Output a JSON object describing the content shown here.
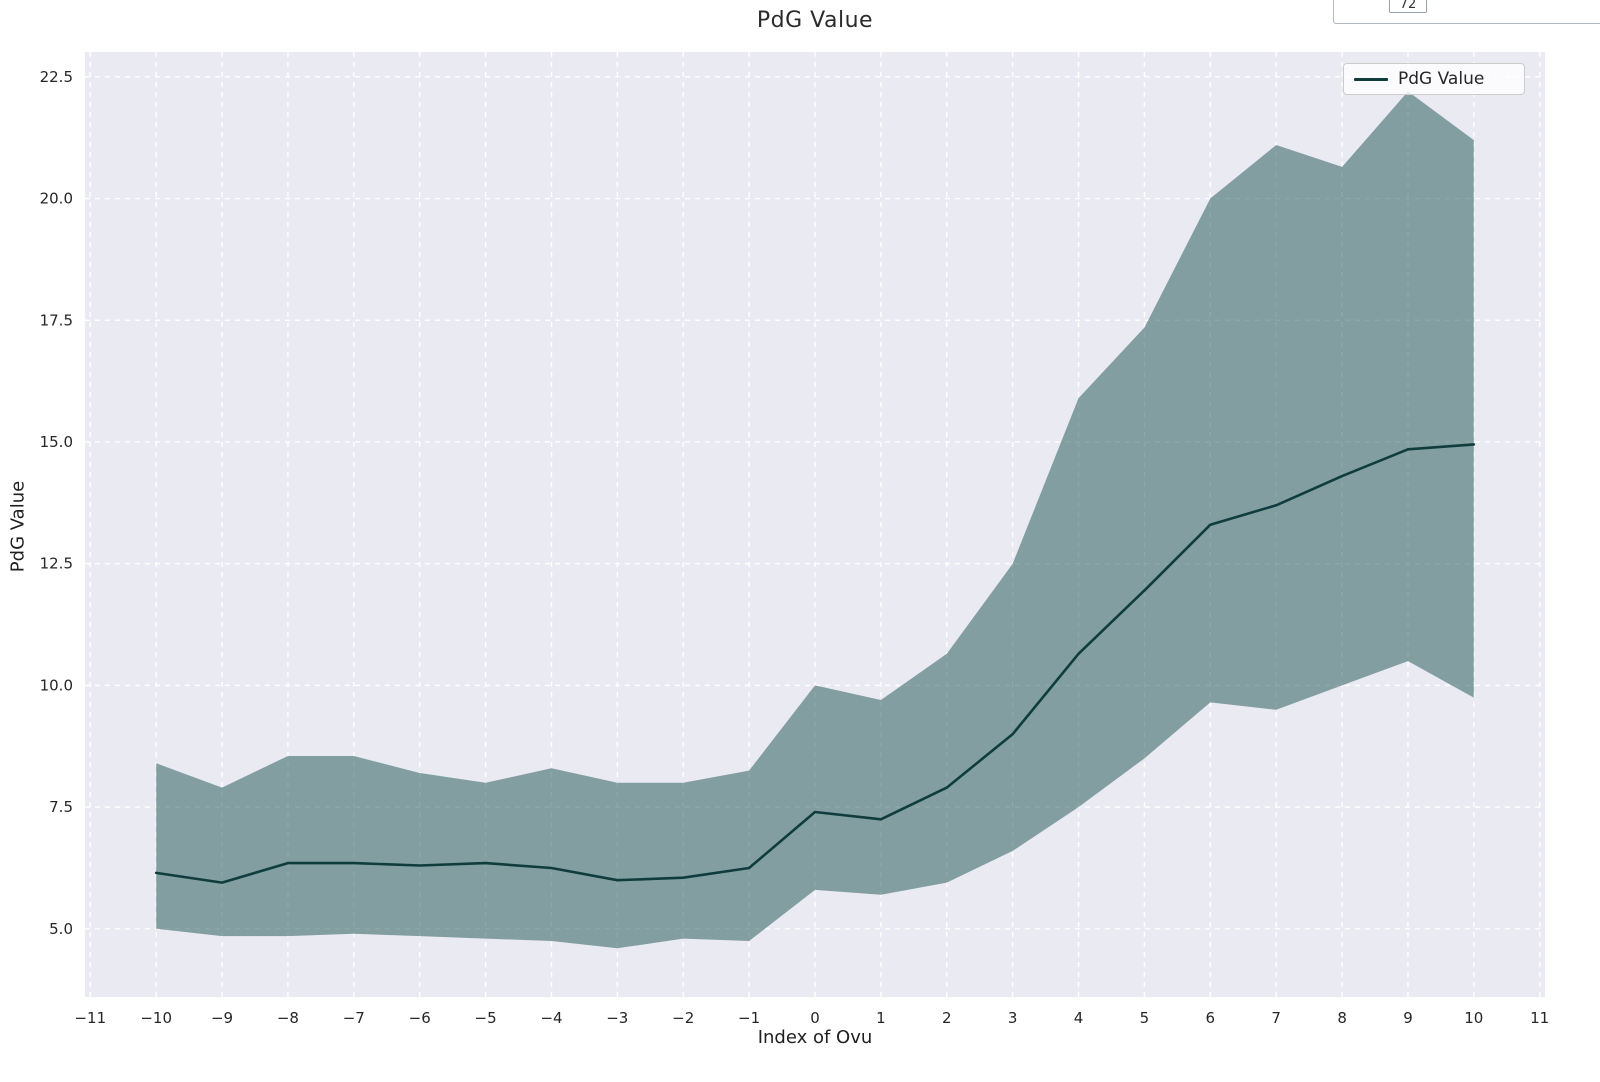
{
  "page": {
    "background": "#ffffff"
  },
  "partial_widget": {
    "text": "72"
  },
  "chart_data": {
    "type": "line",
    "title": "PdG Value",
    "xlabel": "Index of Ovu",
    "ylabel": "PdG Value",
    "legend": {
      "label": "PdG Value",
      "position": "upper right"
    },
    "grid": "on, white dashed (seaborn darkgrid style)",
    "x": [
      -10,
      -9,
      -8,
      -7,
      -6,
      -5,
      -4,
      -3,
      -2,
      -1,
      0,
      1,
      2,
      3,
      4,
      5,
      6,
      7,
      8,
      9,
      10
    ],
    "series": [
      {
        "name": "PdG Value (mean line)",
        "values": [
          6.15,
          5.95,
          6.35,
          6.35,
          6.3,
          6.35,
          6.25,
          6.0,
          6.05,
          6.25,
          7.4,
          7.25,
          7.9,
          9.0,
          10.65,
          11.95,
          13.3,
          13.7,
          14.3,
          14.85,
          14.95
        ]
      }
    ],
    "band": {
      "name": "confidence band",
      "upper": [
        8.4,
        7.9,
        8.55,
        8.55,
        8.2,
        8.0,
        8.3,
        8.0,
        8.0,
        8.25,
        10.0,
        9.7,
        10.65,
        12.5,
        15.9,
        17.35,
        20.0,
        21.1,
        20.65,
        22.2,
        21.2
      ],
      "lower": [
        5.0,
        4.85,
        4.85,
        4.9,
        4.85,
        4.8,
        4.75,
        4.6,
        4.8,
        4.75,
        5.8,
        5.7,
        5.95,
        6.6,
        7.5,
        8.5,
        9.65,
        9.5,
        10.0,
        10.5,
        9.75
      ]
    },
    "xlim": [
      -11.08,
      11.08
    ],
    "ylim": [
      3.6,
      23.01
    ],
    "xticks": [
      -11,
      -10,
      -9,
      -8,
      -7,
      -6,
      -5,
      -4,
      -3,
      -2,
      -1,
      0,
      1,
      2,
      3,
      4,
      5,
      6,
      7,
      8,
      9,
      10,
      11
    ],
    "xtick_labels": [
      "−11",
      "−10",
      "−9",
      "−8",
      "−7",
      "−6",
      "−5",
      "−4",
      "−3",
      "−2",
      "−1",
      "0",
      "1",
      "2",
      "3",
      "4",
      "5",
      "6",
      "7",
      "8",
      "9",
      "10",
      "11"
    ],
    "yticks": [
      5.0,
      7.5,
      10.0,
      12.5,
      15.0,
      17.5,
      20.0,
      22.5
    ],
    "ytick_labels": [
      "5.0",
      "7.5",
      "10.0",
      "12.5",
      "15.0",
      "17.5",
      "20.0",
      "22.5"
    ],
    "colors": {
      "line": "#0f3d3d",
      "band": "#2e5e5e",
      "band_opacity": 0.55,
      "plot_bg": "#eaeaf2",
      "grid": "#ffffff",
      "figure_bg": "#ffffff"
    }
  }
}
